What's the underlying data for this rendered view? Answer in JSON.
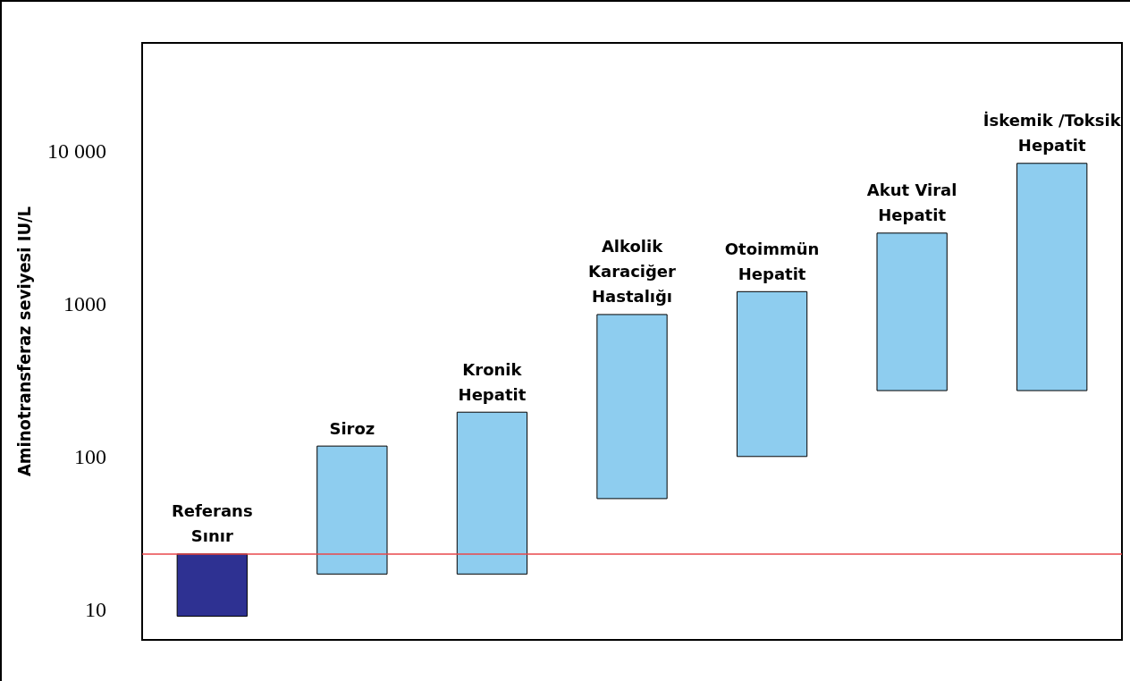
{
  "chart_data": {
    "type": "bar",
    "ylabel": "Aminotransferaz seviyesi IU/L",
    "categories": [
      "Referans\nSınır",
      "Siroz",
      "Kronik\nHepatit",
      "Alkolik\nKaraciğer\nHastalığı",
      "Otoimmün\nHepatit",
      "Akut Viral\nHepatit",
      "İskemik /Toksik\nHepatit"
    ],
    "base": [
      9,
      17,
      17,
      53,
      100,
      270,
      270
    ],
    "values": [
      14,
      100,
      178,
      797,
      1100,
      2630,
      8030
    ],
    "colors": [
      "#2e3192",
      "#8ecdef",
      "#8ecdef",
      "#8ecdef",
      "#8ecdef",
      "#8ecdef",
      "#8ecdef"
    ],
    "log": "y",
    "ylim": [
      6.3,
      51000
    ],
    "yticks": [
      10,
      100,
      1000,
      {
        "value": 10000,
        "label": "10 000"
      }
    ],
    "ref_lines": [
      {
        "axis": "y",
        "value": 23,
        "color": "#e8474b"
      }
    ],
    "tick_labels": "y",
    "grid": false
  }
}
